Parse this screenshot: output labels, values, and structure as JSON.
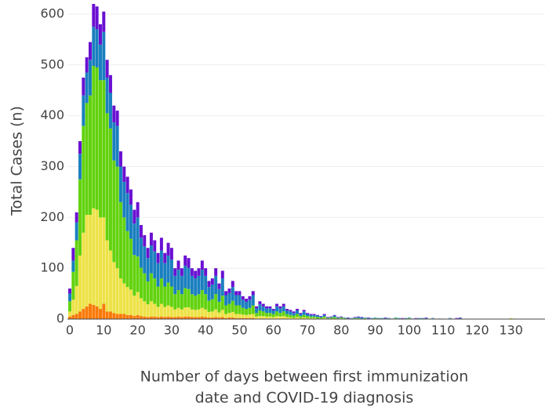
{
  "chart_data": {
    "type": "stacked_bar",
    "ylabel": "Total Cases (n)",
    "xlabel": [
      "Number of days between first immunization",
      "date and COVID-19 diagnosis"
    ],
    "xlim": [
      -0.7,
      140
    ],
    "ylim": [
      0,
      620
    ],
    "xticks": [
      0,
      10,
      20,
      30,
      40,
      50,
      60,
      70,
      80,
      90,
      100,
      110,
      120,
      130
    ],
    "yticks": [
      0,
      100,
      200,
      300,
      400,
      500,
      600
    ],
    "grid": true,
    "x": [
      0,
      1,
      2,
      3,
      4,
      5,
      6,
      7,
      8,
      9,
      10,
      11,
      12,
      13,
      14,
      15,
      16,
      17,
      18,
      19,
      20,
      21,
      22,
      23,
      24,
      25,
      26,
      27,
      28,
      29,
      30,
      31,
      32,
      33,
      34,
      35,
      36,
      37,
      38,
      39,
      40,
      41,
      42,
      43,
      44,
      45,
      46,
      47,
      48,
      49,
      50,
      51,
      52,
      53,
      54,
      55,
      56,
      57,
      58,
      59,
      60,
      61,
      62,
      63,
      64,
      65,
      66,
      67,
      68,
      69,
      70,
      71,
      72,
      73,
      74,
      75,
      76,
      77,
      78,
      79,
      80,
      81,
      82,
      83,
      84,
      85,
      86,
      87,
      88,
      89,
      90,
      91,
      92,
      93,
      94,
      95,
      96,
      97,
      98,
      99,
      100,
      101,
      102,
      103,
      104,
      105,
      106,
      107,
      108,
      109,
      110,
      111,
      112,
      113,
      114,
      115,
      116,
      117,
      118,
      119,
      120,
      121,
      122,
      123,
      124,
      125,
      126,
      127,
      128,
      129,
      130
    ],
    "series": [
      {
        "color": "#f97a0a",
        "values": [
          5,
          8,
          10,
          15,
          20,
          25,
          30,
          28,
          25,
          20,
          30,
          15,
          15,
          12,
          10,
          10,
          10,
          8,
          8,
          6,
          8,
          6,
          5,
          4,
          5,
          5,
          4,
          5,
          4,
          5,
          4,
          4,
          5,
          4,
          5,
          5,
          4,
          4,
          4,
          5,
          4,
          3,
          3,
          4,
          3,
          4,
          2,
          3,
          3,
          2,
          2,
          2,
          2,
          2,
          2,
          1,
          1,
          1,
          1,
          1,
          1,
          1,
          1,
          1,
          1,
          0,
          0,
          1,
          0,
          0,
          0,
          0,
          0,
          0,
          0,
          0,
          0,
          0,
          0,
          0,
          0,
          0,
          0,
          0,
          0,
          0,
          0,
          0,
          0,
          0,
          0,
          0,
          0,
          0,
          0,
          0,
          0,
          0,
          0,
          0,
          0,
          0,
          0,
          0,
          0,
          0,
          0,
          0,
          0,
          0,
          0,
          0,
          0,
          0,
          0,
          0,
          0,
          0,
          0,
          0,
          0,
          0,
          0,
          0,
          0,
          0,
          0,
          0,
          0,
          0,
          0
        ]
      },
      {
        "color": "#ede247",
        "values": [
          10,
          30,
          55,
          110,
          150,
          180,
          175,
          190,
          190,
          180,
          170,
          140,
          120,
          100,
          90,
          70,
          60,
          55,
          50,
          40,
          45,
          35,
          30,
          25,
          30,
          25,
          20,
          25,
          20,
          22,
          20,
          15,
          17,
          15,
          18,
          18,
          15,
          14,
          15,
          17,
          15,
          11,
          12,
          15,
          10,
          14,
          8,
          9,
          11,
          8,
          8,
          7,
          6,
          7,
          8,
          4,
          5,
          5,
          4,
          4,
          3,
          5,
          4,
          5,
          3,
          3,
          2,
          3,
          2,
          3,
          2,
          2,
          2,
          1,
          1,
          2,
          1,
          1,
          1,
          1,
          1,
          1,
          0,
          0,
          1,
          1,
          0,
          1,
          0,
          1,
          1,
          0,
          1,
          0,
          0,
          0,
          1,
          0,
          1,
          0,
          1,
          0,
          0,
          0,
          1,
          0,
          0,
          1,
          0,
          0,
          1,
          0,
          0,
          0,
          0,
          0,
          0,
          0,
          0,
          0,
          0,
          0,
          0,
          0,
          0,
          0,
          0,
          0,
          0,
          0,
          2
        ]
      },
      {
        "color": "#62d20e",
        "values": [
          20,
          55,
          90,
          150,
          210,
          220,
          235,
          280,
          280,
          270,
          270,
          250,
          240,
          200,
          200,
          150,
          130,
          110,
          100,
          80,
          70,
          60,
          55,
          45,
          55,
          50,
          40,
          50,
          40,
          45,
          40,
          30,
          35,
          30,
          38,
          36,
          30,
          28,
          30,
          35,
          30,
          22,
          24,
          30,
          21,
          28,
          17,
          18,
          22,
          17,
          17,
          13,
          12,
          13,
          17,
          7,
          11,
          9,
          7,
          7,
          6,
          9,
          7,
          9,
          6,
          5,
          5,
          6,
          4,
          5,
          4,
          3,
          3,
          3,
          2,
          3,
          1,
          2,
          3,
          1,
          2,
          1,
          1,
          1,
          1,
          1,
          1,
          1,
          1,
          0,
          1,
          1,
          0,
          1,
          1,
          0,
          1,
          1,
          0,
          1,
          1,
          0,
          1,
          1,
          0,
          1,
          0,
          0,
          0,
          0,
          0,
          0,
          1,
          0,
          0,
          1,
          0,
          0,
          0,
          0,
          0,
          0,
          0,
          0,
          0,
          0,
          0,
          0,
          0,
          0,
          0
        ]
      },
      {
        "color": "#1a7fbf",
        "values": [
          15,
          22,
          35,
          50,
          60,
          60,
          70,
          77,
          75,
          70,
          95,
          70,
          70,
          75,
          80,
          70,
          70,
          75,
          67,
          62,
          77,
          59,
          53,
          46,
          55,
          53,
          46,
          55,
          46,
          53,
          53,
          36,
          40,
          36,
          44,
          42,
          36,
          34,
          36,
          40,
          36,
          27,
          29,
          36,
          25,
          34,
          20,
          21,
          27,
          20,
          20,
          16,
          14,
          16,
          20,
          9,
          12,
          10,
          9,
          9,
          7,
          10,
          9,
          10,
          7,
          7,
          5,
          7,
          4,
          7,
          4,
          3,
          3,
          3,
          2,
          3,
          1,
          1,
          3,
          1,
          1,
          1,
          1,
          1,
          1,
          2,
          2,
          1,
          1,
          1,
          1,
          1,
          1,
          1,
          1,
          1,
          1,
          1,
          0,
          1,
          1,
          1,
          0,
          1,
          1,
          1,
          0,
          1,
          0,
          1,
          0,
          0,
          1,
          0,
          1,
          1,
          0,
          0,
          0,
          0,
          0,
          0,
          0,
          0,
          0,
          0,
          0,
          0,
          0,
          0,
          0
        ]
      },
      {
        "color": "#6a10d2",
        "values": [
          10,
          25,
          20,
          25,
          35,
          30,
          35,
          45,
          45,
          40,
          40,
          35,
          35,
          33,
          30,
          30,
          30,
          32,
          30,
          27,
          30,
          25,
          22,
          20,
          25,
          22,
          20,
          25,
          20,
          25,
          23,
          15,
          18,
          15,
          20,
          19,
          15,
          15,
          15,
          18,
          15,
          12,
          12,
          15,
          11,
          15,
          8,
          9,
          12,
          8,
          8,
          7,
          6,
          7,
          8,
          4,
          6,
          5,
          4,
          4,
          3,
          5,
          4,
          5,
          3,
          3,
          3,
          3,
          2,
          3,
          2,
          2,
          2,
          1,
          1,
          2,
          1,
          1,
          1,
          1,
          1,
          0,
          1,
          0,
          1,
          1,
          1,
          0,
          1,
          0,
          0,
          0,
          0,
          1,
          0,
          0,
          0,
          0,
          1,
          0,
          0,
          0,
          1,
          0,
          0,
          1,
          0,
          0,
          0,
          0,
          0,
          0,
          0,
          0,
          1,
          1,
          0,
          0,
          0,
          0,
          0,
          0,
          0,
          0,
          0,
          0,
          0,
          0,
          0,
          0,
          0
        ]
      }
    ]
  }
}
